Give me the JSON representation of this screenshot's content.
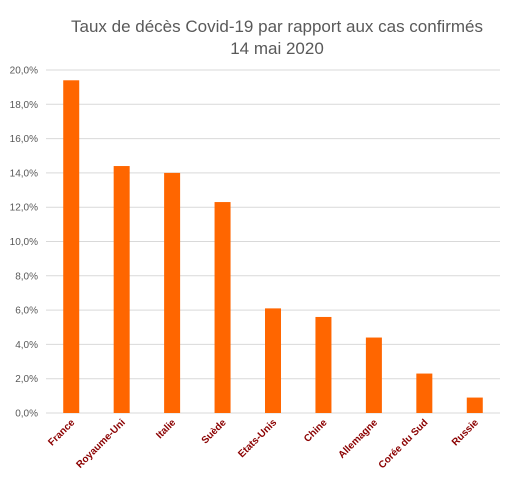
{
  "chart_data": {
    "type": "bar",
    "title": "Taux de décès Covid-19 par rapport aux cas confirmés",
    "subtitle": "14 mai 2020",
    "xlabel": "",
    "ylabel": "",
    "categories": [
      "France",
      "Royaume-Uni",
      "Italie",
      "Suède",
      "Etats-Unis",
      "Chine",
      "Allemagne",
      "Corée du Sud",
      "Russie"
    ],
    "values": [
      19.4,
      14.4,
      14.0,
      12.3,
      6.1,
      5.6,
      4.4,
      2.3,
      0.9
    ],
    "ylim": [
      0,
      20
    ],
    "yticks": [
      "0,0%",
      "2,0%",
      "4,0%",
      "6,0%",
      "8,0%",
      "10,0%",
      "12,0%",
      "14,0%",
      "16,0%",
      "18,0%",
      "20,0%"
    ],
    "grid": true,
    "legend": "none",
    "bar_color": "#FF6600",
    "category_label_color": "#8B0000",
    "gridline_color": "#D9D9D9"
  }
}
